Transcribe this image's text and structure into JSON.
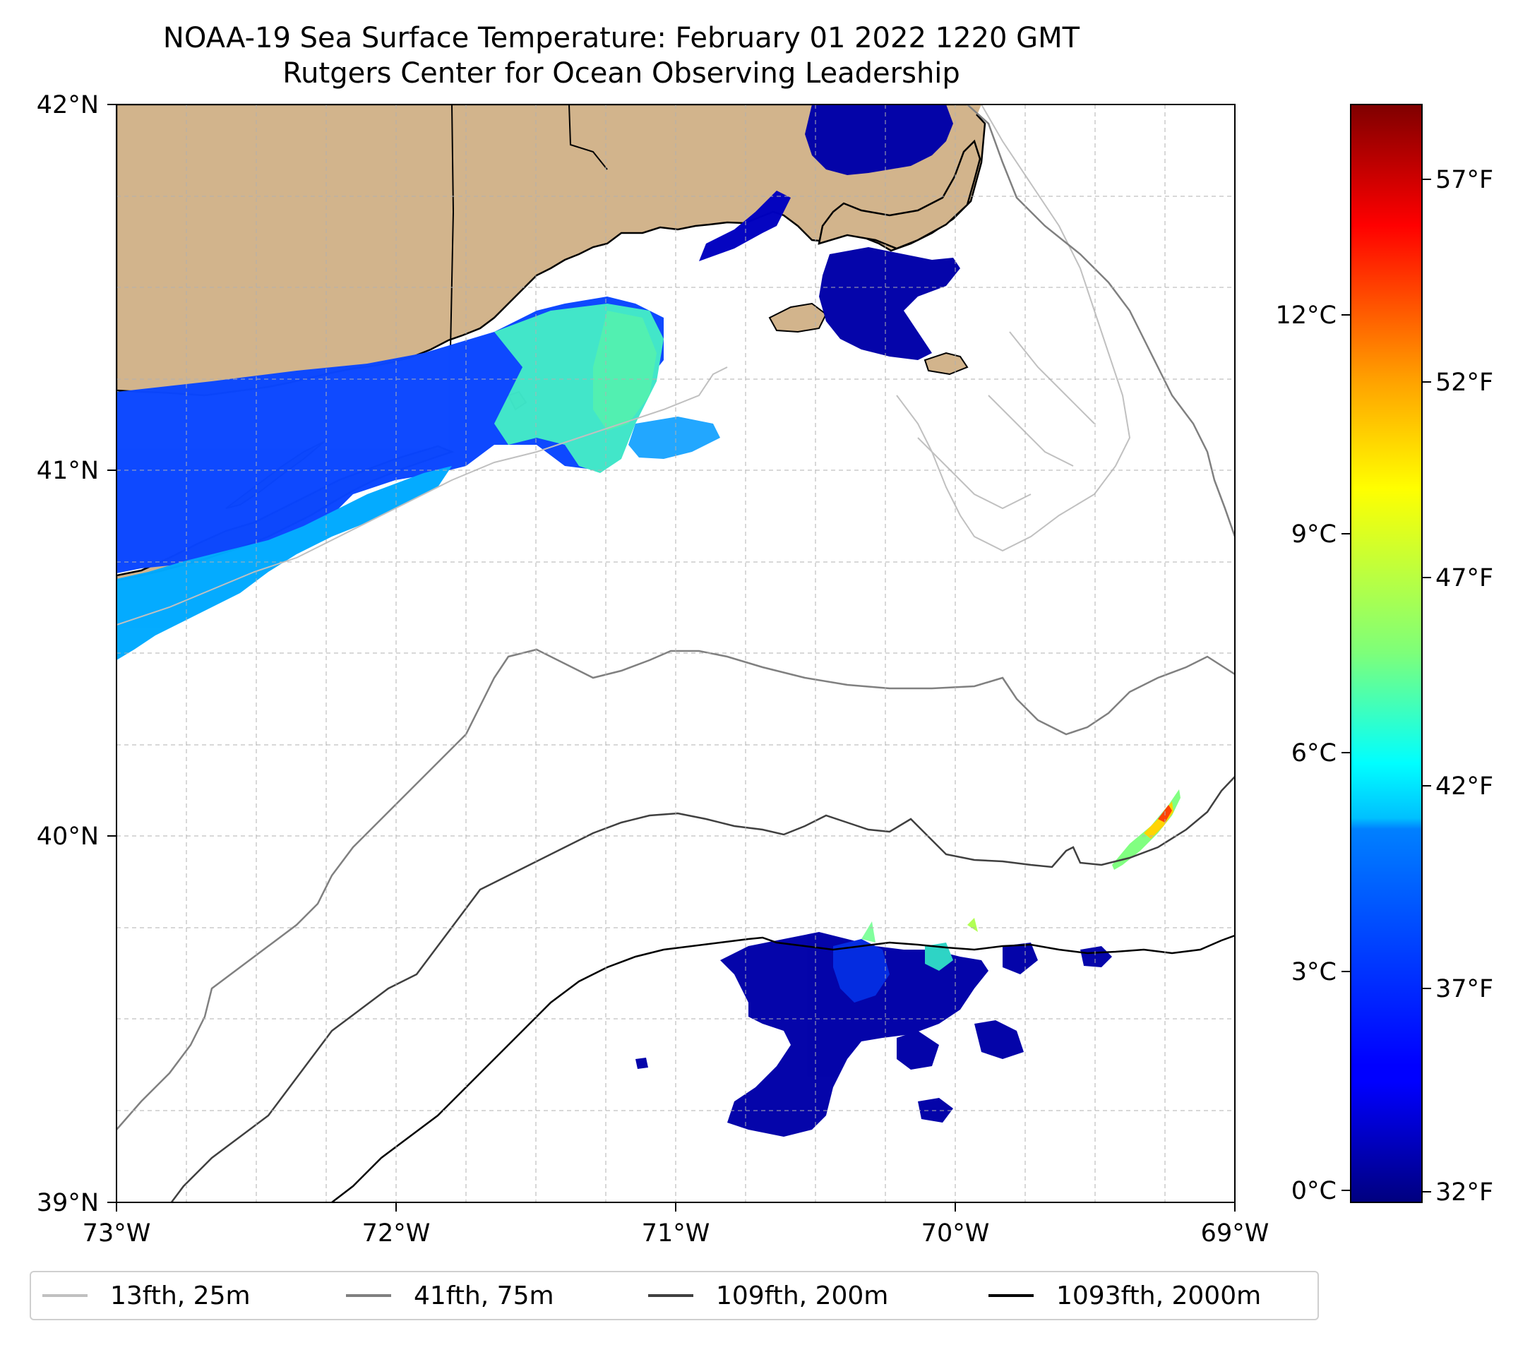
{
  "title": "NOAA-19 Sea Surface Temperature: February 01 2022 1220 GMT",
  "subtitle": "Rutgers Center for Ocean Observing Leadership",
  "map": {
    "lon_range": [
      -73,
      -69
    ],
    "lat_range": [
      39,
      42
    ],
    "lon_ticks": [
      "73°W",
      "72°W",
      "71°W",
      "70°W",
      "69°W"
    ],
    "lat_ticks": [
      "42°N",
      "41°N",
      "40°N",
      "39°N"
    ],
    "grid": true,
    "land_color": "#d2b48c",
    "coast_color": "#000000"
  },
  "colorbar": {
    "colormap": "jet",
    "celsius_ticks": [
      "12°C",
      "9°C",
      "6°C",
      "3°C",
      "0°C"
    ],
    "fahrenheit_ticks": [
      "57°F",
      "52°F",
      "47°F",
      "42°F",
      "37°F",
      "32°F"
    ]
  },
  "legend": {
    "placement": "bottom",
    "items": [
      {
        "label": "13fth, 25m",
        "color": "#c0c0c0"
      },
      {
        "label": "41fth, 75m",
        "color": "#808080"
      },
      {
        "label": "109fth, 200m",
        "color": "#404040"
      },
      {
        "label": "1093fth, 2000m",
        "color": "#000000"
      }
    ]
  }
}
